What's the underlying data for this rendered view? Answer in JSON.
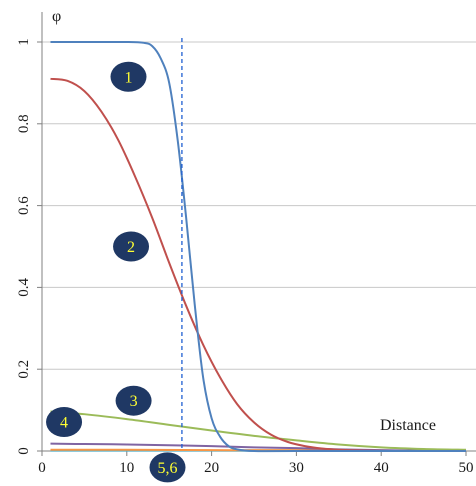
{
  "chart_data": {
    "type": "line",
    "ylabel": "φ",
    "xlabel": "Distance",
    "xlim": [
      0,
      50
    ],
    "ylim": [
      0,
      1
    ],
    "xticks": [
      0,
      10,
      20,
      30,
      40,
      50
    ],
    "yticks": [
      0,
      0.2,
      0.4,
      0.6,
      0.8,
      1
    ],
    "grid": "horizontal",
    "vline_x": 16.5,
    "series": [
      {
        "name": "1",
        "color": "#4f81bd",
        "points": [
          [
            1,
            1
          ],
          [
            5,
            1
          ],
          [
            10,
            1
          ],
          [
            12,
            0.998
          ],
          [
            13,
            0.99
          ],
          [
            14,
            0.96
          ],
          [
            15,
            0.9
          ],
          [
            16,
            0.76
          ],
          [
            17,
            0.57
          ],
          [
            18,
            0.36
          ],
          [
            19,
            0.18
          ],
          [
            20,
            0.08
          ],
          [
            21,
            0.035
          ],
          [
            22,
            0.012
          ],
          [
            23,
            0.004
          ],
          [
            25,
            0
          ],
          [
            30,
            0
          ],
          [
            50,
            0
          ]
        ]
      },
      {
        "name": "2",
        "color": "#c0504d",
        "points": [
          [
            1,
            0.91
          ],
          [
            3,
            0.905
          ],
          [
            5,
            0.88
          ],
          [
            7,
            0.83
          ],
          [
            9,
            0.76
          ],
          [
            11,
            0.67
          ],
          [
            13,
            0.57
          ],
          [
            15,
            0.46
          ],
          [
            17,
            0.355
          ],
          [
            19,
            0.26
          ],
          [
            21,
            0.18
          ],
          [
            23,
            0.115
          ],
          [
            25,
            0.07
          ],
          [
            27,
            0.04
          ],
          [
            29,
            0.022
          ],
          [
            31,
            0.012
          ],
          [
            33,
            0.006
          ],
          [
            35,
            0.003
          ],
          [
            38,
            0.001
          ],
          [
            42,
            0
          ],
          [
            50,
            0
          ]
        ]
      },
      {
        "name": "3",
        "color": "#9bbb59",
        "points": [
          [
            1,
            0.097
          ],
          [
            5,
            0.09
          ],
          [
            10,
            0.078
          ],
          [
            15,
            0.064
          ],
          [
            20,
            0.05
          ],
          [
            25,
            0.037
          ],
          [
            30,
            0.026
          ],
          [
            35,
            0.016
          ],
          [
            40,
            0.009
          ],
          [
            45,
            0.005
          ],
          [
            50,
            0.003
          ]
        ]
      },
      {
        "name": "4",
        "color": "#8064a2",
        "points": [
          [
            1,
            0.018
          ],
          [
            5,
            0.017
          ],
          [
            10,
            0.016
          ],
          [
            15,
            0.014
          ],
          [
            20,
            0.012
          ],
          [
            25,
            0.009
          ],
          [
            30,
            0.007
          ],
          [
            35,
            0.004
          ],
          [
            40,
            0.002
          ],
          [
            45,
            0.001
          ],
          [
            50,
            0
          ]
        ]
      },
      {
        "name": "5",
        "color": "#f79646",
        "points": [
          [
            1,
            0.003
          ],
          [
            10,
            0.003
          ],
          [
            20,
            0.002
          ],
          [
            30,
            0.002
          ],
          [
            40,
            0.001
          ],
          [
            50,
            0.001
          ]
        ]
      },
      {
        "name": "6",
        "color": "#4bacc6",
        "points": [
          [
            1,
            0.001
          ],
          [
            10,
            0.001
          ],
          [
            20,
            0.001
          ],
          [
            30,
            0.0005
          ],
          [
            40,
            0.0003
          ],
          [
            50,
            0.0002
          ]
        ]
      }
    ],
    "markers": [
      {
        "label": "1",
        "x": 10.2,
        "y": 0.915
      },
      {
        "label": "2",
        "x": 10.5,
        "y": 0.5
      },
      {
        "label": "3",
        "x": 10.8,
        "y": 0.123
      },
      {
        "label": "4",
        "x": 2.6,
        "y": 0.071
      },
      {
        "label": "5,6",
        "x": 14.8,
        "y": -0.04
      }
    ]
  }
}
